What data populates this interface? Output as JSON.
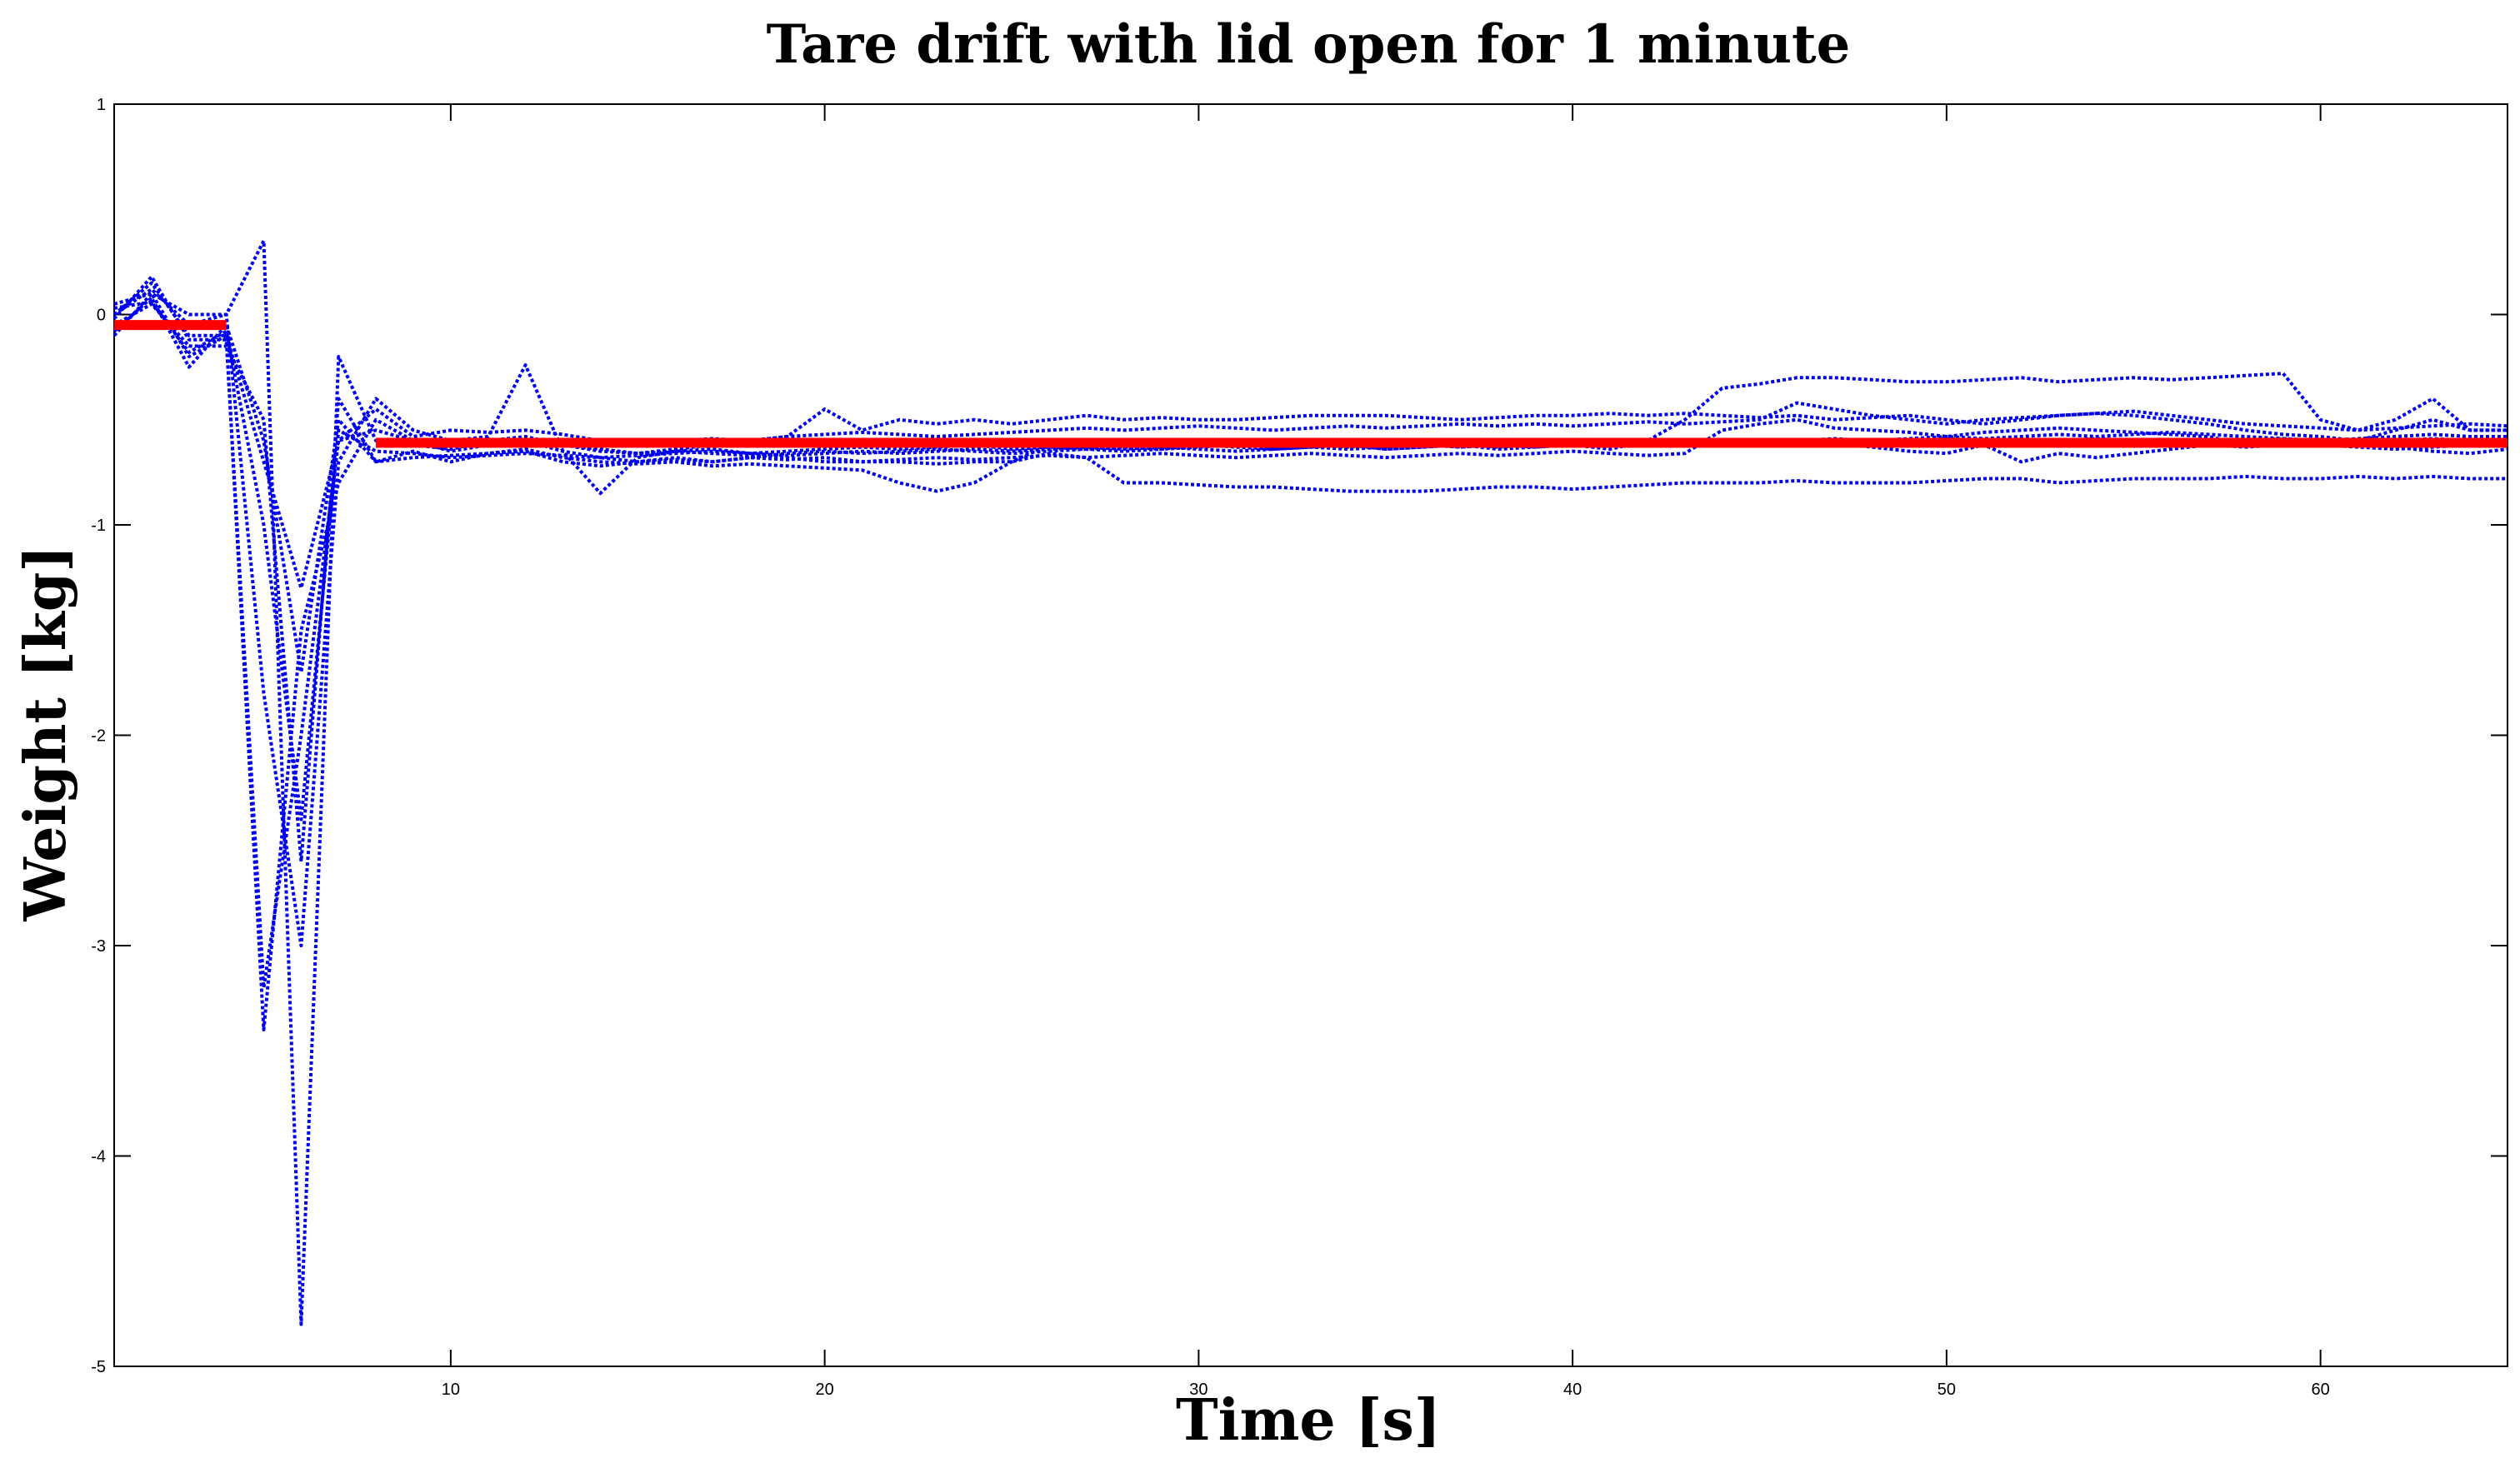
{
  "chart_data": {
    "type": "line",
    "title": "Tare drift with lid open for 1 minute",
    "xlabel": "Time [s]",
    "ylabel": "Weight [kg]",
    "xlim": [
      1,
      65
    ],
    "ylim": [
      -5,
      1
    ],
    "xticks": [
      10,
      20,
      30,
      40,
      50,
      60
    ],
    "yticks": [
      1,
      0,
      -1,
      -2,
      -3,
      -4,
      -5
    ],
    "grid": false,
    "series_style": {
      "trial": "blue-dotted",
      "mean": "red-solid"
    },
    "colors": {
      "trial": "#0000ee",
      "mean": "#ff0000"
    },
    "x": [
      1,
      2,
      3,
      4,
      5,
      6,
      7,
      8,
      9,
      10,
      11,
      12,
      13,
      14,
      15,
      16,
      17,
      18,
      19,
      20,
      21,
      22,
      23,
      24,
      25,
      26,
      27,
      28,
      29,
      30,
      31,
      32,
      33,
      34,
      35,
      36,
      37,
      38,
      39,
      40,
      41,
      42,
      43,
      44,
      45,
      46,
      47,
      48,
      49,
      50,
      51,
      52,
      53,
      54,
      55,
      56,
      57,
      58,
      59,
      60,
      61,
      62,
      63,
      64,
      65
    ],
    "series": [
      {
        "values": [
          -0.1,
          0.1,
          -0.2,
          -0.1,
          -0.7,
          -1.3,
          -0.6,
          -0.55,
          -0.6,
          -0.65,
          -0.62,
          -0.6,
          -0.65,
          -0.68,
          -0.7,
          -0.68,
          -0.7,
          -0.68,
          -0.66,
          -0.65,
          -0.66,
          -0.65,
          -0.64,
          -0.65,
          -0.66,
          -0.65,
          -0.64,
          -0.63,
          -0.64,
          -0.63,
          -0.62,
          -0.63,
          -0.62,
          -0.63,
          -0.62,
          -0.62,
          -0.63,
          -0.62,
          -0.61,
          -0.62,
          -0.61,
          -0.6,
          -0.62,
          -0.61,
          -0.6,
          -0.61,
          -0.6,
          -0.61,
          -0.6,
          -0.59,
          -0.6,
          -0.61,
          -0.6,
          -0.59,
          -0.6,
          -0.61,
          -0.6,
          -0.6,
          -0.59,
          -0.6,
          -0.61,
          -0.6,
          -0.59,
          -0.6,
          -0.6
        ]
      },
      {
        "values": [
          0.0,
          0.15,
          -0.1,
          -0.1,
          -3.4,
          -1.5,
          -0.8,
          -0.5,
          -0.6,
          -0.62,
          -0.6,
          -0.58,
          -0.62,
          -0.65,
          -0.66,
          -0.64,
          -0.62,
          -0.6,
          -0.58,
          -0.45,
          -0.55,
          -0.5,
          -0.52,
          -0.5,
          -0.52,
          -0.5,
          -0.48,
          -0.5,
          -0.49,
          -0.5,
          -0.5,
          -0.49,
          -0.48,
          -0.48,
          -0.48,
          -0.49,
          -0.5,
          -0.49,
          -0.48,
          -0.48,
          -0.47,
          -0.48,
          -0.47,
          -0.48,
          -0.49,
          -0.48,
          -0.5,
          -0.49,
          -0.48,
          -0.5,
          -0.52,
          -0.5,
          -0.48,
          -0.47,
          -0.48,
          -0.5,
          -0.52,
          -0.55,
          -0.57,
          -0.58,
          -0.6,
          -0.55,
          -0.5,
          -0.55,
          -0.55
        ]
      },
      {
        "values": [
          0.05,
          0.1,
          0.0,
          0.0,
          0.35,
          -4.8,
          -0.2,
          -0.6,
          -0.62,
          -0.64,
          -0.6,
          -0.6,
          -0.62,
          -0.64,
          -0.66,
          -0.65,
          -0.66,
          -0.67,
          -0.68,
          -0.7,
          -0.7,
          -0.7,
          -0.71,
          -0.7,
          -0.7,
          -0.66,
          -0.68,
          -0.8,
          -0.8,
          -0.81,
          -0.82,
          -0.82,
          -0.83,
          -0.84,
          -0.84,
          -0.84,
          -0.83,
          -0.82,
          -0.82,
          -0.83,
          -0.82,
          -0.81,
          -0.8,
          -0.8,
          -0.8,
          -0.79,
          -0.8,
          -0.8,
          -0.8,
          -0.79,
          -0.78,
          -0.78,
          -0.8,
          -0.79,
          -0.78,
          -0.78,
          -0.78,
          -0.77,
          -0.78,
          -0.78,
          -0.77,
          -0.78,
          -0.77,
          -0.78,
          -0.78
        ]
      },
      {
        "values": [
          -0.05,
          0.05,
          -0.15,
          -0.15,
          -0.5,
          -2.6,
          -0.4,
          -0.7,
          -0.65,
          -0.7,
          -0.66,
          -0.64,
          -0.68,
          -0.7,
          -0.71,
          -0.7,
          -0.72,
          -0.71,
          -0.72,
          -0.73,
          -0.74,
          -0.8,
          -0.84,
          -0.8,
          -0.7,
          -0.62,
          -0.6,
          -0.61,
          -0.6,
          -0.62,
          -0.61,
          -0.63,
          -0.62,
          -0.62,
          -0.64,
          -0.63,
          -0.62,
          -0.63,
          -0.62,
          -0.61,
          -0.6,
          -0.61,
          -0.62,
          -0.6,
          -0.62,
          -0.6,
          -0.61,
          -0.63,
          -0.65,
          -0.66,
          -0.62,
          -0.7,
          -0.66,
          -0.68,
          -0.66,
          -0.64,
          -0.62,
          -0.63,
          -0.62,
          -0.61,
          -0.62,
          -0.63,
          -0.65,
          -0.66,
          -0.64
        ]
      },
      {
        "values": [
          0.0,
          0.12,
          -0.05,
          0.0,
          -1.8,
          -3.0,
          -0.7,
          -0.4,
          -0.55,
          -0.6,
          -0.58,
          -0.24,
          -0.65,
          -0.85,
          -0.68,
          -0.65,
          -0.64,
          -0.66,
          -0.65,
          -0.64,
          -0.63,
          -0.64,
          -0.63,
          -0.62,
          -0.64,
          -0.63,
          -0.64,
          -0.65,
          -0.64,
          -0.62,
          -0.63,
          -0.64,
          -0.63,
          -0.62,
          -0.64,
          -0.63,
          -0.62,
          -0.64,
          -0.63,
          -0.62,
          -0.64,
          -0.6,
          -0.5,
          -0.35,
          -0.33,
          -0.3,
          -0.3,
          -0.31,
          -0.32,
          -0.32,
          -0.31,
          -0.3,
          -0.32,
          -0.31,
          -0.3,
          -0.31,
          -0.3,
          -0.29,
          -0.28,
          -0.5,
          -0.55,
          -0.5,
          -0.4,
          -0.55,
          -0.55
        ]
      },
      {
        "values": [
          -0.08,
          0.08,
          -0.25,
          -0.05,
          -0.6,
          -1.7,
          -0.5,
          -0.7,
          -0.68,
          -0.67,
          -0.66,
          -0.65,
          -0.7,
          -0.72,
          -0.7,
          -0.69,
          -0.7,
          -0.68,
          -0.69,
          -0.68,
          -0.7,
          -0.69,
          -0.68,
          -0.69,
          -0.68,
          -0.67,
          -0.68,
          -0.67,
          -0.66,
          -0.67,
          -0.68,
          -0.67,
          -0.66,
          -0.67,
          -0.68,
          -0.67,
          -0.66,
          -0.67,
          -0.66,
          -0.65,
          -0.66,
          -0.67,
          -0.66,
          -0.55,
          -0.52,
          -0.5,
          -0.54,
          -0.55,
          -0.56,
          -0.58,
          -0.56,
          -0.55,
          -0.54,
          -0.55,
          -0.56,
          -0.57,
          -0.58,
          -0.62,
          -0.62,
          -0.62,
          -0.63,
          -0.64,
          -0.63,
          -0.62,
          -0.62
        ]
      },
      {
        "values": [
          -0.02,
          0.18,
          -0.12,
          -0.12,
          -3.2,
          -2.0,
          -0.6,
          -0.45,
          -0.58,
          -0.55,
          -0.56,
          -0.55,
          -0.57,
          -0.6,
          -0.61,
          -0.6,
          -0.59,
          -0.6,
          -0.58,
          -0.57,
          -0.56,
          -0.57,
          -0.58,
          -0.57,
          -0.56,
          -0.55,
          -0.54,
          -0.55,
          -0.54,
          -0.53,
          -0.54,
          -0.55,
          -0.54,
          -0.53,
          -0.54,
          -0.53,
          -0.52,
          -0.53,
          -0.52,
          -0.53,
          -0.52,
          -0.51,
          -0.52,
          -0.51,
          -0.5,
          -0.42,
          -0.45,
          -0.48,
          -0.5,
          -0.52,
          -0.5,
          -0.49,
          -0.48,
          -0.47,
          -0.46,
          -0.48,
          -0.5,
          -0.52,
          -0.53,
          -0.54,
          -0.55,
          -0.54,
          -0.53,
          -0.52,
          -0.53
        ]
      },
      {
        "values": [
          0.03,
          0.06,
          -0.18,
          -0.08,
          -1.0,
          -2.4,
          -0.55,
          -0.65,
          -0.66,
          -0.68,
          -0.67,
          -0.66,
          -0.67,
          -0.68,
          -0.67,
          -0.66,
          -0.65,
          -0.66,
          -0.67,
          -0.66,
          -0.65,
          -0.66,
          -0.65,
          -0.64,
          -0.65,
          -0.64,
          -0.63,
          -0.64,
          -0.63,
          -0.64,
          -0.65,
          -0.64,
          -0.63,
          -0.64,
          -0.63,
          -0.62,
          -0.63,
          -0.62,
          -0.63,
          -0.62,
          -0.61,
          -0.62,
          -0.61,
          -0.6,
          -0.61,
          -0.6,
          -0.59,
          -0.6,
          -0.59,
          -0.58,
          -0.59,
          -0.58,
          -0.57,
          -0.58,
          -0.57,
          -0.56,
          -0.57,
          -0.58,
          -0.59,
          -0.6,
          -0.59,
          -0.58,
          -0.57,
          -0.58,
          -0.58
        ]
      },
      {
        "name": "",
        "values": [
          -0.05,
          -0.05,
          -0.05,
          -0.05,
          null,
          null,
          null,
          -0.61,
          -0.61,
          -0.61,
          -0.61,
          -0.61,
          -0.61,
          -0.61,
          -0.61,
          -0.61,
          -0.61,
          -0.61,
          -0.61,
          -0.61,
          -0.61,
          -0.61,
          -0.61,
          -0.61,
          -0.61,
          -0.61,
          -0.61,
          -0.61,
          -0.61,
          -0.61,
          -0.61,
          -0.61,
          -0.61,
          -0.61,
          -0.61,
          -0.61,
          -0.61,
          -0.61,
          -0.61,
          -0.61,
          -0.61,
          -0.61,
          -0.61,
          -0.61,
          -0.61,
          -0.61,
          -0.61,
          -0.61,
          -0.61,
          -0.61,
          -0.61,
          -0.61,
          -0.61,
          -0.61,
          -0.61,
          -0.61,
          -0.61,
          -0.61,
          -0.61,
          -0.61,
          -0.61,
          -0.61,
          -0.61,
          -0.61,
          -0.61
        ],
        "role": "mean"
      }
    ]
  }
}
